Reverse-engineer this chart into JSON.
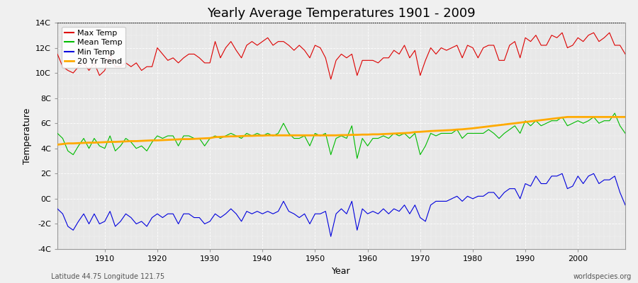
{
  "title": "Yearly Average Temperatures 1901 - 2009",
  "xlabel": "Year",
  "ylabel": "Temperature",
  "years": [
    1901,
    1902,
    1903,
    1904,
    1905,
    1906,
    1907,
    1908,
    1909,
    1910,
    1911,
    1912,
    1913,
    1914,
    1915,
    1916,
    1917,
    1918,
    1919,
    1920,
    1921,
    1922,
    1923,
    1924,
    1925,
    1926,
    1927,
    1928,
    1929,
    1930,
    1931,
    1932,
    1933,
    1934,
    1935,
    1936,
    1937,
    1938,
    1939,
    1940,
    1941,
    1942,
    1943,
    1944,
    1945,
    1946,
    1947,
    1948,
    1949,
    1950,
    1951,
    1952,
    1953,
    1954,
    1955,
    1956,
    1957,
    1958,
    1959,
    1960,
    1961,
    1962,
    1963,
    1964,
    1965,
    1966,
    1967,
    1968,
    1969,
    1970,
    1971,
    1972,
    1973,
    1974,
    1975,
    1976,
    1977,
    1978,
    1979,
    1980,
    1981,
    1982,
    1983,
    1984,
    1985,
    1986,
    1987,
    1988,
    1989,
    1990,
    1991,
    1992,
    1993,
    1994,
    1995,
    1996,
    1997,
    1998,
    1999,
    2000,
    2001,
    2002,
    2003,
    2004,
    2005,
    2006,
    2007,
    2008,
    2009
  ],
  "max_temp": [
    11.5,
    10.5,
    10.2,
    10.0,
    10.5,
    10.8,
    10.2,
    10.8,
    9.8,
    10.2,
    11.5,
    10.5,
    10.5,
    10.8,
    10.5,
    10.8,
    10.2,
    10.5,
    10.5,
    12.0,
    11.5,
    11.0,
    11.2,
    10.8,
    11.2,
    11.5,
    11.5,
    11.2,
    10.8,
    10.8,
    12.5,
    11.2,
    12.0,
    12.5,
    11.8,
    11.2,
    12.2,
    12.5,
    12.2,
    12.5,
    12.8,
    12.2,
    12.5,
    12.5,
    12.2,
    11.8,
    12.2,
    11.8,
    11.2,
    12.2,
    12.0,
    11.2,
    9.5,
    11.0,
    11.5,
    11.2,
    11.5,
    9.8,
    11.0,
    11.0,
    11.0,
    10.8,
    11.2,
    11.2,
    11.8,
    11.5,
    12.2,
    11.2,
    11.8,
    9.8,
    11.0,
    12.0,
    11.5,
    12.0,
    11.8,
    12.0,
    12.2,
    11.2,
    12.2,
    12.0,
    11.2,
    12.0,
    12.2,
    12.2,
    11.0,
    11.0,
    12.2,
    12.5,
    11.2,
    12.8,
    12.5,
    13.0,
    12.2,
    12.2,
    13.0,
    12.8,
    13.2,
    12.0,
    12.2,
    12.8,
    12.5,
    13.0,
    13.2,
    12.5,
    12.8,
    13.2,
    12.2,
    12.2,
    11.5
  ],
  "mean_temp": [
    5.2,
    4.8,
    3.8,
    3.5,
    4.2,
    4.8,
    4.0,
    4.8,
    4.2,
    4.0,
    5.0,
    3.8,
    4.2,
    4.8,
    4.5,
    4.0,
    4.2,
    3.8,
    4.5,
    5.0,
    4.8,
    5.0,
    5.0,
    4.2,
    5.0,
    5.0,
    4.8,
    4.8,
    4.2,
    4.8,
    5.0,
    4.8,
    5.0,
    5.2,
    5.0,
    4.8,
    5.2,
    5.0,
    5.2,
    5.0,
    5.2,
    5.0,
    5.2,
    6.0,
    5.2,
    4.8,
    4.8,
    5.0,
    4.2,
    5.2,
    5.0,
    5.2,
    3.5,
    4.8,
    5.0,
    4.8,
    5.8,
    3.2,
    4.8,
    4.2,
    4.8,
    4.8,
    5.0,
    4.8,
    5.2,
    5.0,
    5.2,
    4.8,
    5.2,
    3.5,
    4.2,
    5.2,
    5.0,
    5.2,
    5.2,
    5.2,
    5.5,
    4.8,
    5.2,
    5.2,
    5.2,
    5.2,
    5.5,
    5.2,
    4.8,
    5.2,
    5.5,
    5.8,
    5.2,
    6.2,
    5.8,
    6.2,
    5.8,
    6.0,
    6.2,
    6.2,
    6.5,
    5.8,
    6.0,
    6.2,
    6.0,
    6.2,
    6.5,
    6.0,
    6.2,
    6.2,
    6.8,
    5.8,
    5.2
  ],
  "min_temp": [
    -0.8,
    -1.2,
    -2.2,
    -2.5,
    -1.8,
    -1.2,
    -2.0,
    -1.2,
    -2.0,
    -1.8,
    -1.0,
    -2.2,
    -1.8,
    -1.2,
    -1.5,
    -2.0,
    -1.8,
    -2.2,
    -1.5,
    -1.2,
    -1.5,
    -1.2,
    -1.2,
    -2.0,
    -1.2,
    -1.2,
    -1.5,
    -1.5,
    -2.0,
    -1.8,
    -1.2,
    -1.5,
    -1.2,
    -0.8,
    -1.2,
    -1.8,
    -1.0,
    -1.2,
    -1.0,
    -1.2,
    -1.0,
    -1.2,
    -1.0,
    -0.2,
    -1.0,
    -1.2,
    -1.5,
    -1.2,
    -2.0,
    -1.2,
    -1.2,
    -1.0,
    -3.0,
    -1.2,
    -0.8,
    -1.2,
    -0.2,
    -2.5,
    -0.8,
    -1.2,
    -1.0,
    -1.2,
    -0.8,
    -1.2,
    -0.8,
    -1.0,
    -0.5,
    -1.2,
    -0.5,
    -1.5,
    -1.8,
    -0.5,
    -0.2,
    -0.2,
    -0.2,
    0.0,
    0.2,
    -0.2,
    0.2,
    0.0,
    0.2,
    0.2,
    0.5,
    0.5,
    0.0,
    0.5,
    0.8,
    0.8,
    0.0,
    1.2,
    1.0,
    1.8,
    1.2,
    1.2,
    1.8,
    1.8,
    2.0,
    0.8,
    1.0,
    1.8,
    1.2,
    1.8,
    2.0,
    1.2,
    1.5,
    1.5,
    1.8,
    0.5,
    -0.5
  ],
  "trend_years": [
    1901,
    1902,
    1903,
    1904,
    1905,
    1906,
    1907,
    1908,
    1909,
    1910,
    1911,
    1912,
    1913,
    1914,
    1915,
    1916,
    1917,
    1918,
    1919,
    1920,
    1921,
    1922,
    1923,
    1924,
    1925,
    1926,
    1927,
    1928,
    1929,
    1930,
    1931,
    1932,
    1933,
    1934,
    1935,
    1936,
    1937,
    1938,
    1939,
    1940,
    1941,
    1942,
    1943,
    1944,
    1945,
    1946,
    1947,
    1948,
    1949,
    1950,
    1951,
    1952,
    1953,
    1954,
    1955,
    1956,
    1957,
    1958,
    1959,
    1960,
    1961,
    1962,
    1963,
    1964,
    1965,
    1966,
    1967,
    1968,
    1969,
    1970,
    1971,
    1972,
    1973,
    1974,
    1975,
    1976,
    1977,
    1978,
    1979,
    1980,
    1981,
    1982,
    1983,
    1984,
    1985,
    1986,
    1987,
    1988,
    1989,
    1990,
    1991,
    1992,
    1993,
    1994,
    1995,
    1996,
    1997,
    1998,
    1999,
    2000,
    2001,
    2002,
    2003,
    2004,
    2005,
    2006,
    2007,
    2008,
    2009
  ],
  "trend_vals": [
    4.3,
    4.35,
    4.4,
    4.4,
    4.42,
    4.44,
    4.46,
    4.46,
    4.48,
    4.5,
    4.52,
    4.52,
    4.54,
    4.56,
    4.58,
    4.58,
    4.6,
    4.62,
    4.64,
    4.64,
    4.66,
    4.68,
    4.7,
    4.72,
    4.74,
    4.74,
    4.76,
    4.78,
    4.8,
    4.82,
    4.9,
    4.92,
    4.94,
    4.96,
    4.96,
    4.98,
    5.0,
    5.0,
    5.02,
    5.02,
    5.04,
    5.04,
    5.04,
    5.04,
    5.04,
    5.04,
    5.04,
    5.04,
    5.04,
    5.04,
    5.04,
    5.04,
    5.04,
    5.04,
    5.06,
    5.06,
    5.08,
    5.08,
    5.1,
    5.1,
    5.12,
    5.12,
    5.14,
    5.16,
    5.18,
    5.2,
    5.22,
    5.24,
    5.3,
    5.32,
    5.35,
    5.38,
    5.4,
    5.42,
    5.44,
    5.46,
    5.5,
    5.52,
    5.56,
    5.6,
    5.65,
    5.7,
    5.75,
    5.8,
    5.85,
    5.9,
    5.95,
    6.0,
    6.05,
    6.1,
    6.15,
    6.2,
    6.25,
    6.3,
    6.35,
    6.4,
    6.45,
    6.5,
    6.5,
    6.5,
    6.5,
    6.5,
    6.5,
    6.5,
    6.5,
    6.5,
    6.5,
    6.5,
    6.5
  ],
  "ylim": [
    -4,
    14
  ],
  "yticks": [
    -4,
    -2,
    0,
    2,
    4,
    6,
    8,
    10,
    12,
    14
  ],
  "ytick_labels": [
    "-4C",
    "-2C",
    "0C",
    "2C",
    "4C",
    "6C",
    "8C",
    "10C",
    "12C",
    "14C"
  ],
  "xlim": [
    1901,
    2009
  ],
  "xticks": [
    1910,
    1920,
    1930,
    1940,
    1950,
    1960,
    1970,
    1980,
    1990,
    2000
  ],
  "bg_color": "#e8e8e8",
  "fig_color": "#f0f0f0",
  "max_color": "#dd0000",
  "mean_color": "#00bb00",
  "min_color": "#0000dd",
  "trend_color": "#ffaa00",
  "dotted_line_y": 14,
  "title_fontsize": 13,
  "axis_fontsize": 9,
  "tick_fontsize": 8,
  "legend_fontsize": 8,
  "bottom_left_text": "Latitude 44.75 Longitude 121.75",
  "bottom_right_text": "worldspecies.org"
}
